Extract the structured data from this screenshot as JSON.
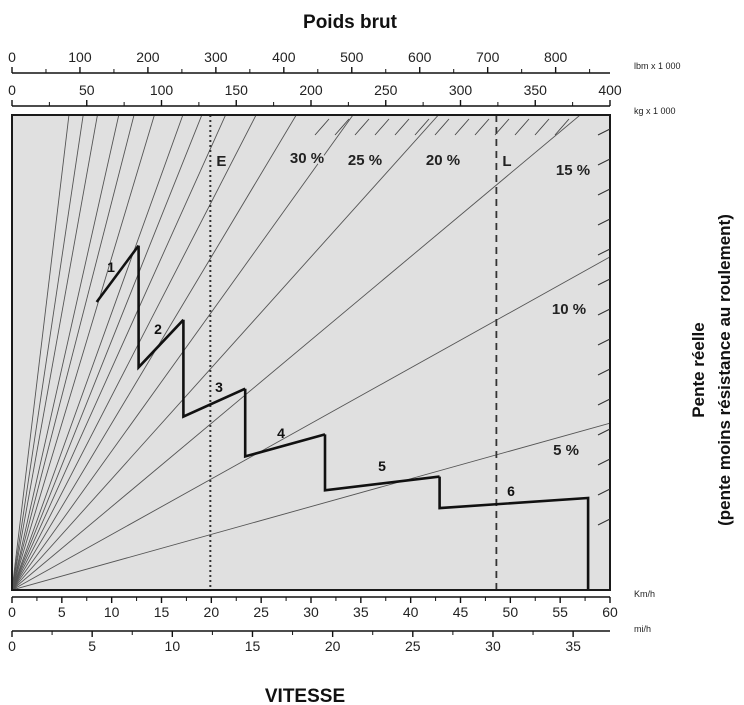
{
  "chart_data": {
    "type": "line",
    "title": "Poids brut",
    "xlabel": "VITESSE",
    "ylabel_line1": "Pente réelle",
    "ylabel_line2": "(pente moins résistance au roulement)",
    "axes": {
      "kmh": {
        "unit": "Km/h",
        "ticks": [
          "0",
          "5",
          "10",
          "15",
          "20",
          "25",
          "30",
          "35",
          "40",
          "45",
          "50",
          "55",
          "60"
        ],
        "range": [
          0,
          60
        ]
      },
      "mih": {
        "unit": "mi/h",
        "ticks": [
          "0",
          "5",
          "10",
          "15",
          "20",
          "25",
          "30",
          "35"
        ],
        "range": [
          0,
          37.3
        ]
      },
      "lbs": {
        "unit": "lbm x 1 000",
        "ticks": [
          "0",
          "100",
          "200",
          "300",
          "400",
          "500",
          "600",
          "700",
          "800"
        ],
        "range": [
          0,
          880
        ]
      },
      "kg": {
        "unit": "kg x 1 000",
        "ticks": [
          "0",
          "50",
          "100",
          "150",
          "200",
          "250",
          "300",
          "350",
          "400"
        ],
        "range": [
          0,
          400
        ]
      }
    },
    "grade_lines": [
      {
        "grade": 5,
        "label": "5 %",
        "end_rimpull": 0.281
      },
      {
        "grade": 10,
        "label": "10 %",
        "end_rimpull": 0.561
      },
      {
        "grade": 15,
        "label": "15 %",
        "end_rimpull": 0.842
      },
      {
        "grade": 20,
        "label": "20 %",
        "end_rimpull": 1.122
      },
      {
        "grade": 25,
        "label": "25 %",
        "end_rimpull": 1.403
      },
      {
        "grade": 30,
        "label": "30 %",
        "end_rimpull": 1.683
      },
      {
        "grade": 35,
        "label": "",
        "end_rimpull": 1.96
      },
      {
        "grade": 40,
        "label": "",
        "end_rimpull": 2.24
      },
      {
        "grade": 45,
        "label": "",
        "end_rimpull": 2.52
      },
      {
        "grade": 50,
        "label": "",
        "end_rimpull": 2.8
      },
      {
        "grade": 60,
        "label": "",
        "end_rimpull": 3.36
      },
      {
        "grade": 70,
        "label": "",
        "end_rimpull": 3.92
      },
      {
        "grade": 80,
        "label": "",
        "end_rimpull": 4.48
      },
      {
        "grade": 100,
        "label": "",
        "end_rimpull": 5.6
      },
      {
        "grade": 120,
        "label": "",
        "end_rimpull": 6.72
      },
      {
        "grade": 150,
        "label": "",
        "end_rimpull": 8.4
      }
    ],
    "vertical_lines": [
      {
        "label": "E",
        "speed_kmh": 19.9,
        "style": "dotted"
      },
      {
        "label": "L",
        "speed_kmh": 48.6,
        "style": "dashed"
      }
    ],
    "gears": [
      {
        "label": "1",
        "points": [
          [
            8.5,
            0.485
          ],
          [
            12.7,
            0.58
          ]
        ]
      },
      {
        "label": "2",
        "points": [
          [
            12.7,
            0.58
          ],
          [
            12.7,
            0.375
          ],
          [
            17.2,
            0.455
          ]
        ]
      },
      {
        "label": "3",
        "points": [
          [
            17.2,
            0.455
          ],
          [
            17.2,
            0.292
          ],
          [
            23.4,
            0.339
          ]
        ]
      },
      {
        "label": "4",
        "points": [
          [
            23.4,
            0.339
          ],
          [
            23.4,
            0.225
          ],
          [
            31.4,
            0.262
          ]
        ]
      },
      {
        "label": "5",
        "points": [
          [
            31.4,
            0.262
          ],
          [
            31.4,
            0.168
          ],
          [
            42.9,
            0.191
          ]
        ]
      },
      {
        "label": "6",
        "points": [
          [
            42.9,
            0.191
          ],
          [
            42.9,
            0.138
          ],
          [
            57.8,
            0.155
          ],
          [
            57.8,
            0.0
          ]
        ]
      }
    ],
    "rimpull_max": 0.8,
    "grid": false,
    "legend": "none"
  }
}
